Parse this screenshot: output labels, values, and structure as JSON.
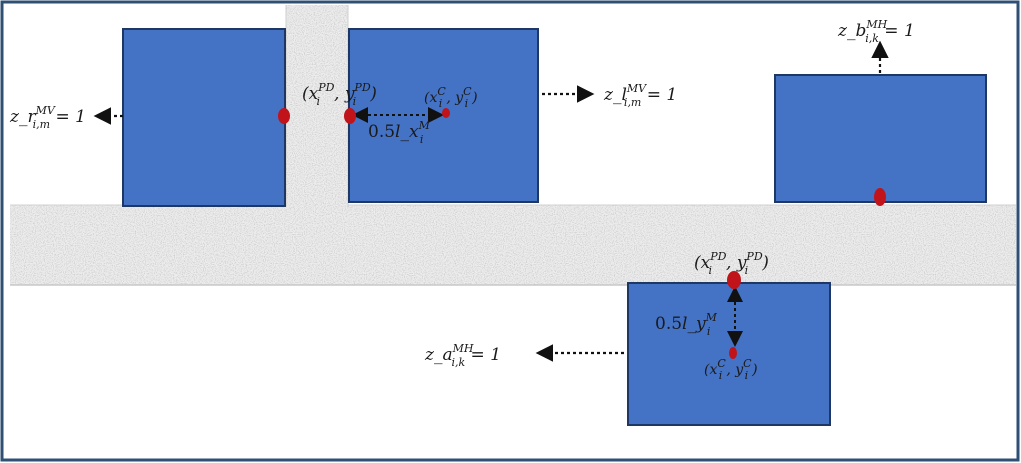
{
  "labels": {
    "left_var": {
      "base": "z_r",
      "sub": "i,m",
      "sup": "MV",
      "rhs": " = 1"
    },
    "right_var": {
      "base": "z_l",
      "sub": "i,m",
      "sup": "MV",
      "rhs": " = 1"
    },
    "top_var": {
      "base": "z_b",
      "sub": "i,k",
      "sup": "MH",
      "rhs": " = 1"
    },
    "bottom_var": {
      "base": "z_a",
      "sub": "i,k",
      "sup": "MH",
      "rhs": " = 1"
    },
    "pd_point_top": {
      "x": "x",
      "xsub": "i",
      "xsup": "PD",
      "y": "y",
      "ysub": "i",
      "ysup": "PD"
    },
    "pd_point_bottom": {
      "x": "x",
      "xsub": "i",
      "xsup": "PD",
      "y": "y",
      "ysub": "i",
      "ysup": "PD"
    },
    "center_top": {
      "x": "x",
      "xsub": "i",
      "xsup": "C",
      "y": "y",
      "ysub": "i",
      "ysup": "C"
    },
    "center_bottom": {
      "x": "x",
      "xsub": "i",
      "xsup": "C",
      "y": "y",
      "ysub": "i",
      "ysup": "C"
    },
    "half_x": {
      "coef": "0.5",
      "base": "l_x",
      "sub": "i",
      "sup": "M"
    },
    "half_y": {
      "coef": "0.5",
      "base": "l_y",
      "sub": "i",
      "sup": "M"
    }
  },
  "colors": {
    "block_fill": "#4472c4",
    "block_stroke": "#1f3763",
    "point": "#c0141a",
    "aisle": "#ececec",
    "frame": "#2f4f74"
  }
}
